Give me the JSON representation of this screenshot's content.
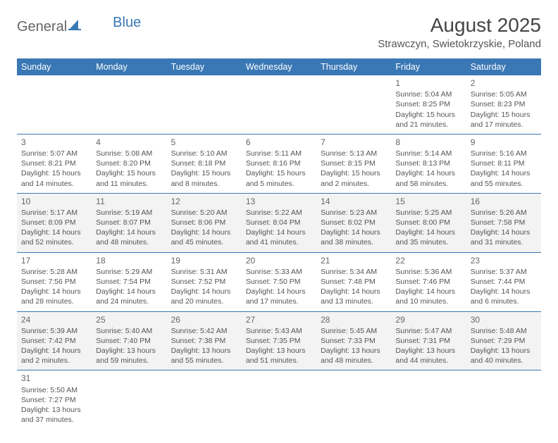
{
  "logo": {
    "text1": "General",
    "text2": "Blue"
  },
  "title": "August 2025",
  "subtitle": "Strawczyn, Swietokrzyskie, Poland",
  "day_headers": [
    "Sunday",
    "Monday",
    "Tuesday",
    "Wednesday",
    "Thursday",
    "Friday",
    "Saturday"
  ],
  "colors": {
    "header_bg": "#3a78b5",
    "header_fg": "#ffffff",
    "row_alt_bg": "#f3f3f3",
    "cell_border": "#3a78b5",
    "text": "#555555",
    "title": "#444444"
  },
  "fonts": {
    "title_size": 28,
    "subtitle_size": 15,
    "header_size": 12.5,
    "cell_size": 10.5,
    "daynum_size": 12
  },
  "weeks": [
    [
      null,
      null,
      null,
      null,
      null,
      {
        "n": "1",
        "sr": "Sunrise: 5:04 AM",
        "ss": "Sunset: 8:25 PM",
        "d1": "Daylight: 15 hours",
        "d2": "and 21 minutes."
      },
      {
        "n": "2",
        "sr": "Sunrise: 5:05 AM",
        "ss": "Sunset: 8:23 PM",
        "d1": "Daylight: 15 hours",
        "d2": "and 17 minutes."
      }
    ],
    [
      {
        "n": "3",
        "sr": "Sunrise: 5:07 AM",
        "ss": "Sunset: 8:21 PM",
        "d1": "Daylight: 15 hours",
        "d2": "and 14 minutes."
      },
      {
        "n": "4",
        "sr": "Sunrise: 5:08 AM",
        "ss": "Sunset: 8:20 PM",
        "d1": "Daylight: 15 hours",
        "d2": "and 11 minutes."
      },
      {
        "n": "5",
        "sr": "Sunrise: 5:10 AM",
        "ss": "Sunset: 8:18 PM",
        "d1": "Daylight: 15 hours",
        "d2": "and 8 minutes."
      },
      {
        "n": "6",
        "sr": "Sunrise: 5:11 AM",
        "ss": "Sunset: 8:16 PM",
        "d1": "Daylight: 15 hours",
        "d2": "and 5 minutes."
      },
      {
        "n": "7",
        "sr": "Sunrise: 5:13 AM",
        "ss": "Sunset: 8:15 PM",
        "d1": "Daylight: 15 hours",
        "d2": "and 2 minutes."
      },
      {
        "n": "8",
        "sr": "Sunrise: 5:14 AM",
        "ss": "Sunset: 8:13 PM",
        "d1": "Daylight: 14 hours",
        "d2": "and 58 minutes."
      },
      {
        "n": "9",
        "sr": "Sunrise: 5:16 AM",
        "ss": "Sunset: 8:11 PM",
        "d1": "Daylight: 14 hours",
        "d2": "and 55 minutes."
      }
    ],
    [
      {
        "n": "10",
        "sr": "Sunrise: 5:17 AM",
        "ss": "Sunset: 8:09 PM",
        "d1": "Daylight: 14 hours",
        "d2": "and 52 minutes."
      },
      {
        "n": "11",
        "sr": "Sunrise: 5:19 AM",
        "ss": "Sunset: 8:07 PM",
        "d1": "Daylight: 14 hours",
        "d2": "and 48 minutes."
      },
      {
        "n": "12",
        "sr": "Sunrise: 5:20 AM",
        "ss": "Sunset: 8:06 PM",
        "d1": "Daylight: 14 hours",
        "d2": "and 45 minutes."
      },
      {
        "n": "13",
        "sr": "Sunrise: 5:22 AM",
        "ss": "Sunset: 8:04 PM",
        "d1": "Daylight: 14 hours",
        "d2": "and 41 minutes."
      },
      {
        "n": "14",
        "sr": "Sunrise: 5:23 AM",
        "ss": "Sunset: 8:02 PM",
        "d1": "Daylight: 14 hours",
        "d2": "and 38 minutes."
      },
      {
        "n": "15",
        "sr": "Sunrise: 5:25 AM",
        "ss": "Sunset: 8:00 PM",
        "d1": "Daylight: 14 hours",
        "d2": "and 35 minutes."
      },
      {
        "n": "16",
        "sr": "Sunrise: 5:26 AM",
        "ss": "Sunset: 7:58 PM",
        "d1": "Daylight: 14 hours",
        "d2": "and 31 minutes."
      }
    ],
    [
      {
        "n": "17",
        "sr": "Sunrise: 5:28 AM",
        "ss": "Sunset: 7:56 PM",
        "d1": "Daylight: 14 hours",
        "d2": "and 28 minutes."
      },
      {
        "n": "18",
        "sr": "Sunrise: 5:29 AM",
        "ss": "Sunset: 7:54 PM",
        "d1": "Daylight: 14 hours",
        "d2": "and 24 minutes."
      },
      {
        "n": "19",
        "sr": "Sunrise: 5:31 AM",
        "ss": "Sunset: 7:52 PM",
        "d1": "Daylight: 14 hours",
        "d2": "and 20 minutes."
      },
      {
        "n": "20",
        "sr": "Sunrise: 5:33 AM",
        "ss": "Sunset: 7:50 PM",
        "d1": "Daylight: 14 hours",
        "d2": "and 17 minutes."
      },
      {
        "n": "21",
        "sr": "Sunrise: 5:34 AM",
        "ss": "Sunset: 7:48 PM",
        "d1": "Daylight: 14 hours",
        "d2": "and 13 minutes."
      },
      {
        "n": "22",
        "sr": "Sunrise: 5:36 AM",
        "ss": "Sunset: 7:46 PM",
        "d1": "Daylight: 14 hours",
        "d2": "and 10 minutes."
      },
      {
        "n": "23",
        "sr": "Sunrise: 5:37 AM",
        "ss": "Sunset: 7:44 PM",
        "d1": "Daylight: 14 hours",
        "d2": "and 6 minutes."
      }
    ],
    [
      {
        "n": "24",
        "sr": "Sunrise: 5:39 AM",
        "ss": "Sunset: 7:42 PM",
        "d1": "Daylight: 14 hours",
        "d2": "and 2 minutes."
      },
      {
        "n": "25",
        "sr": "Sunrise: 5:40 AM",
        "ss": "Sunset: 7:40 PM",
        "d1": "Daylight: 13 hours",
        "d2": "and 59 minutes."
      },
      {
        "n": "26",
        "sr": "Sunrise: 5:42 AM",
        "ss": "Sunset: 7:38 PM",
        "d1": "Daylight: 13 hours",
        "d2": "and 55 minutes."
      },
      {
        "n": "27",
        "sr": "Sunrise: 5:43 AM",
        "ss": "Sunset: 7:35 PM",
        "d1": "Daylight: 13 hours",
        "d2": "and 51 minutes."
      },
      {
        "n": "28",
        "sr": "Sunrise: 5:45 AM",
        "ss": "Sunset: 7:33 PM",
        "d1": "Daylight: 13 hours",
        "d2": "and 48 minutes."
      },
      {
        "n": "29",
        "sr": "Sunrise: 5:47 AM",
        "ss": "Sunset: 7:31 PM",
        "d1": "Daylight: 13 hours",
        "d2": "and 44 minutes."
      },
      {
        "n": "30",
        "sr": "Sunrise: 5:48 AM",
        "ss": "Sunset: 7:29 PM",
        "d1": "Daylight: 13 hours",
        "d2": "and 40 minutes."
      }
    ],
    [
      {
        "n": "31",
        "sr": "Sunrise: 5:50 AM",
        "ss": "Sunset: 7:27 PM",
        "d1": "Daylight: 13 hours",
        "d2": "and 37 minutes."
      },
      null,
      null,
      null,
      null,
      null,
      null
    ]
  ]
}
